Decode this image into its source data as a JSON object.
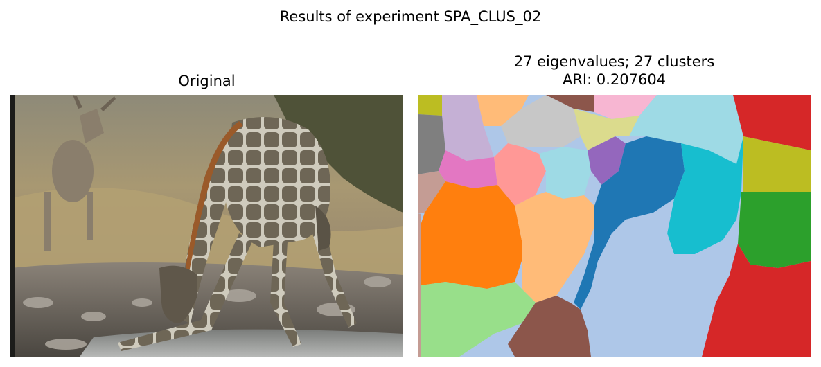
{
  "figure": {
    "suptitle": "Results of experiment SPA_CLUS_02"
  },
  "panels": {
    "original": {
      "title": "Original",
      "image_subject": "giraffe-drinking-photo"
    },
    "segmentation": {
      "title_line1": "27 eigenvalues; 27 clusters",
      "title_line2": "ARI: 0.207604",
      "image_subject": "cluster-segmentation-map"
    }
  },
  "colors": {
    "orange": "#ff7f0e",
    "light_orange": "#ffbb78",
    "green": "#2ca02c",
    "light_green": "#98df8a",
    "red": "#d62728",
    "purple": "#9467bd",
    "lavender": "#c5b0d5",
    "brown": "#8c564b",
    "pink": "#e377c2",
    "light_pink": "#f7b6d2",
    "salmon": "#ff9896",
    "gray": "#7f7f7f",
    "light_gray": "#c7c7c7",
    "olive": "#bcbd22",
    "khaki": "#dbdb8d",
    "blue": "#1f77b4",
    "light_blue": "#aec7e8",
    "cyan": "#17becf",
    "light_cyan": "#9edae5",
    "rose_brown": "#c49c94"
  }
}
